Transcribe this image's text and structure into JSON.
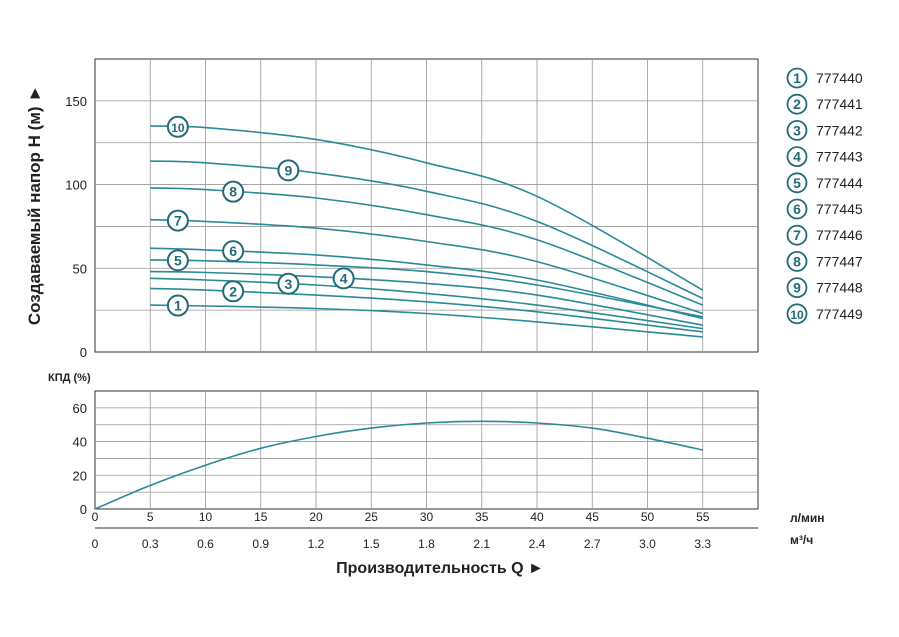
{
  "chart_data": [
    {
      "type": "line",
      "ylabel": "Создаваемый напор H (м) ►",
      "xlim": [
        0,
        60
      ],
      "ylim": [
        0,
        175
      ],
      "y_ticks": [
        0,
        50,
        100,
        150
      ],
      "grid": true,
      "legend_position": "right",
      "series": [
        {
          "name": "777440",
          "marker": "1",
          "x": [
            5,
            10,
            20,
            30,
            40,
            55
          ],
          "values": [
            28,
            27.5,
            26,
            23,
            18,
            9
          ]
        },
        {
          "name": "777441",
          "marker": "2",
          "x": [
            5,
            10,
            20,
            30,
            40,
            55
          ],
          "values": [
            38,
            37,
            34,
            30,
            24,
            12
          ]
        },
        {
          "name": "777442",
          "marker": "3",
          "x": [
            5,
            10,
            20,
            30,
            40,
            55
          ],
          "values": [
            44,
            43,
            40,
            35,
            28,
            14
          ]
        },
        {
          "name": "777443",
          "marker": "4",
          "x": [
            5,
            10,
            20,
            30,
            40,
            55
          ],
          "values": [
            48,
            47.5,
            45,
            41,
            34,
            16
          ]
        },
        {
          "name": "777444",
          "marker": "5",
          "x": [
            5,
            10,
            20,
            30,
            40,
            55
          ],
          "values": [
            55,
            54.5,
            52,
            48,
            40,
            21
          ]
        },
        {
          "name": "777445",
          "marker": "6",
          "x": [
            5,
            10,
            20,
            30,
            40,
            55
          ],
          "values": [
            62,
            61,
            58,
            52,
            43,
            20
          ]
        },
        {
          "name": "777446",
          "marker": "7",
          "x": [
            5,
            10,
            20,
            30,
            40,
            55
          ],
          "values": [
            79,
            78,
            74,
            66,
            54,
            23
          ]
        },
        {
          "name": "777447",
          "marker": "8",
          "x": [
            5,
            10,
            20,
            30,
            40,
            55
          ],
          "values": [
            98,
            97,
            92,
            82,
            67,
            28
          ]
        },
        {
          "name": "777448",
          "marker": "9",
          "x": [
            5,
            10,
            20,
            30,
            40,
            55
          ],
          "values": [
            114,
            113,
            107,
            96,
            78,
            32
          ]
        },
        {
          "name": "777449",
          "marker": "10",
          "x": [
            5,
            10,
            20,
            30,
            40,
            55
          ],
          "values": [
            135,
            134,
            127,
            113,
            93,
            37
          ]
        }
      ]
    },
    {
      "type": "line",
      "ylabel": "КПД (%)",
      "xlabel": "Производительность Q ►",
      "xlim": [
        0,
        60
      ],
      "ylim": [
        0,
        70
      ],
      "y_ticks": [
        0,
        20,
        40,
        60
      ],
      "grid": true,
      "x_ticks": [
        0,
        5,
        10,
        15,
        20,
        25,
        30,
        35,
        40,
        45,
        50,
        55
      ],
      "x_unit": "л/мин",
      "x2_ticks": [
        "0",
        "0.3",
        "0.6",
        "0.9",
        "1.2",
        "1.5",
        "1.8",
        "2.1",
        "2.4",
        "2.7",
        "3.0",
        "3.3"
      ],
      "x2_unit": "м³/ч",
      "series": [
        {
          "x": [
            0,
            5,
            10,
            15,
            20,
            25,
            30,
            35,
            40,
            45,
            50,
            55
          ],
          "values": [
            0,
            14,
            26,
            36,
            43,
            48,
            51,
            52,
            51,
            48,
            42,
            35
          ]
        }
      ]
    }
  ],
  "colors": {
    "curve": "#2a8a98",
    "marker": "#236b78",
    "grid": "#999999",
    "axis": "#333333"
  }
}
